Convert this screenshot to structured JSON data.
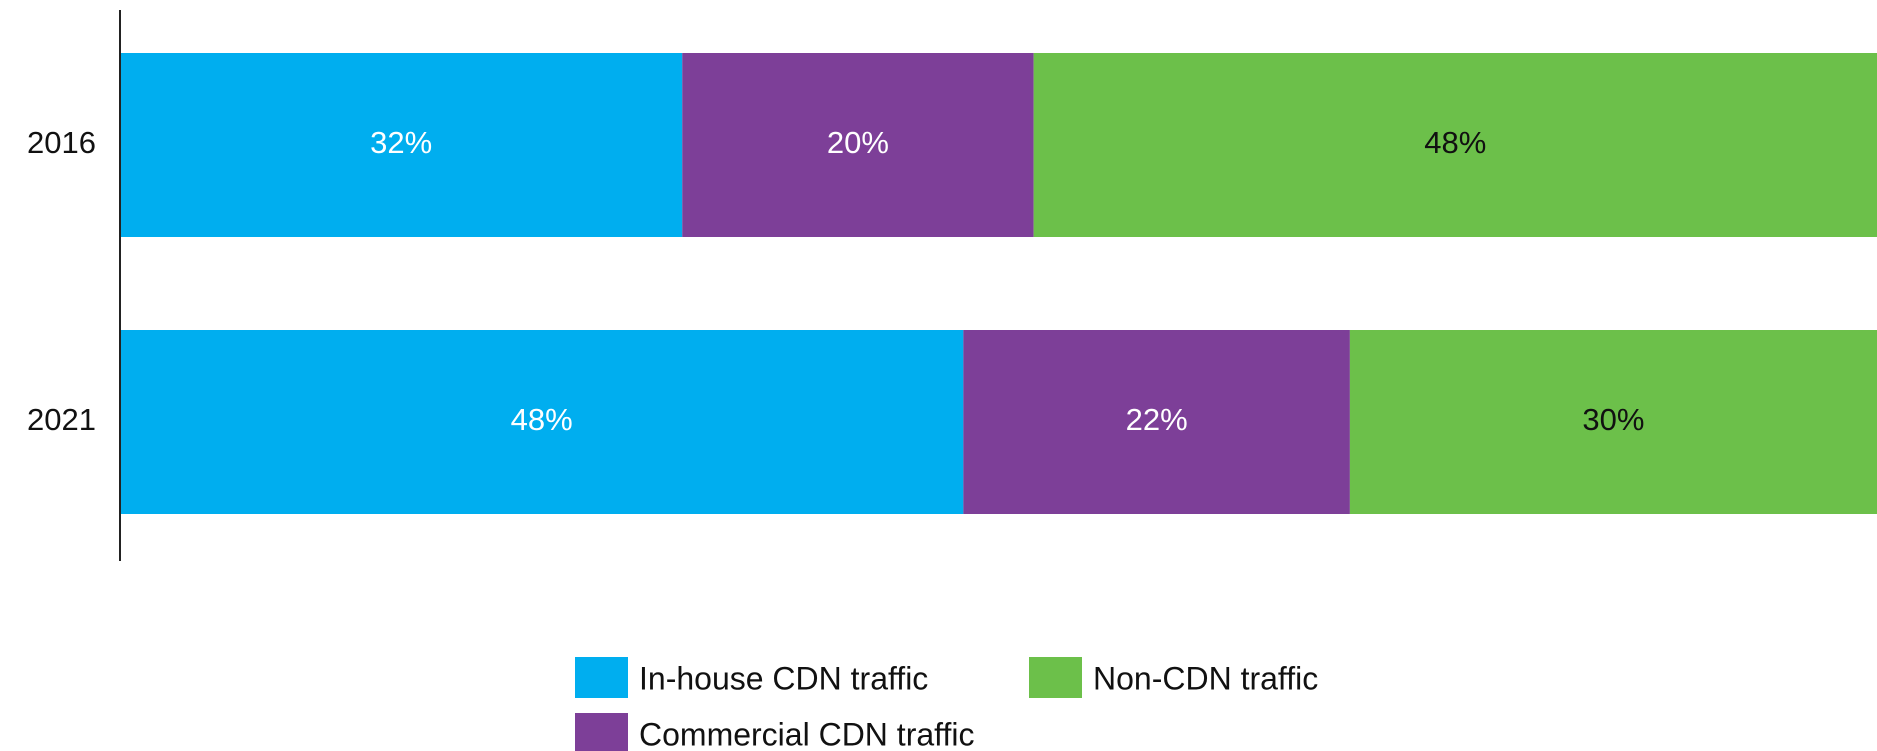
{
  "chart_data": {
    "type": "stacked-barh",
    "categories": [
      "2016",
      "2021"
    ],
    "series": [
      {
        "name": "In-house CDN traffic",
        "color": "#00aeef",
        "values": [
          32,
          48
        ],
        "value_labels": [
          "32%",
          "48%"
        ]
      },
      {
        "name": "Commercial CDN traffic",
        "color": "#7d3f98",
        "values": [
          20,
          22
        ],
        "value_labels": [
          "20%",
          "22%"
        ]
      },
      {
        "name": "Non-CDN traffic",
        "color": "#6cc04a",
        "values": [
          48,
          30
        ],
        "value_labels": [
          "48%",
          "30%"
        ]
      }
    ]
  }
}
